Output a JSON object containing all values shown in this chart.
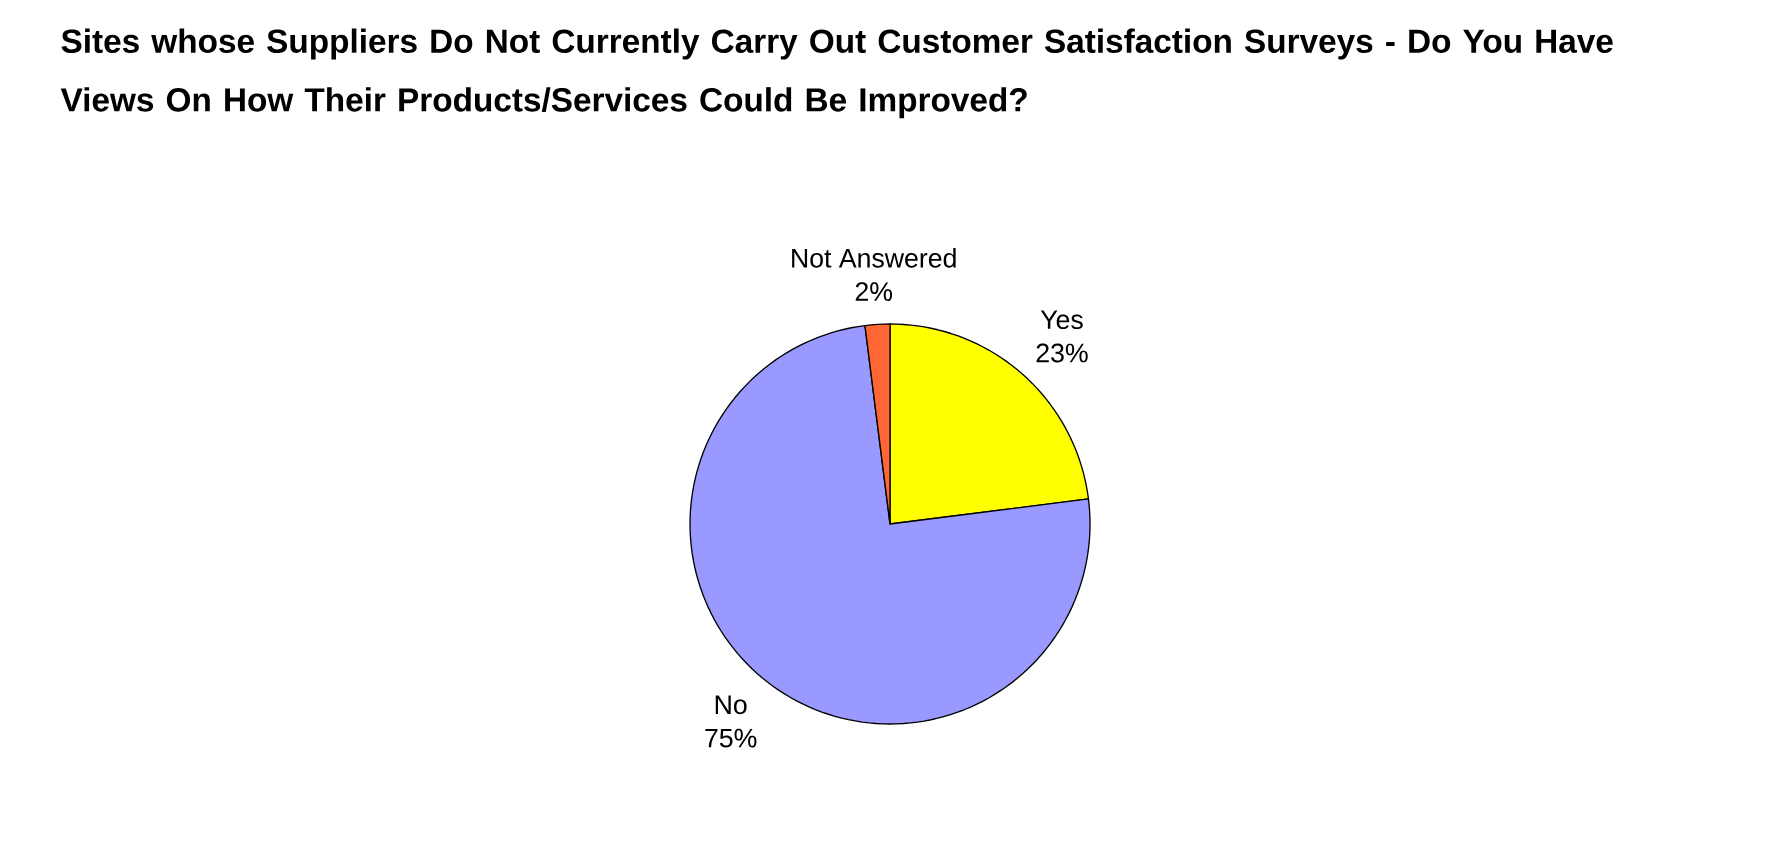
{
  "chart_data": {
    "type": "pie",
    "title": "Sites whose Suppliers Do Not Currently Carry Out Customer Satisfaction Surveys - Do You Have Views On How Their Products/Services Could Be Improved?",
    "categories": [
      "Yes",
      "No",
      "Not Answered"
    ],
    "values": [
      23,
      75,
      2
    ],
    "value_labels": [
      "23%",
      "75%",
      "2%"
    ],
    "colors": [
      "#ffff00",
      "#9999ff",
      "#ff6633"
    ]
  }
}
